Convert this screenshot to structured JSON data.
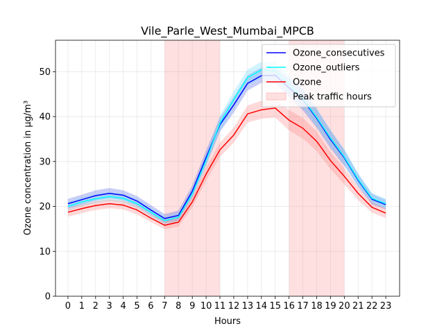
{
  "chart_data": {
    "type": "line",
    "title": "Vile_Parle_West_Mumbai_MPCB",
    "xlabel": "Hours",
    "ylabel": "Ozone concentration in µg/m³",
    "xlim": [
      -0.9,
      24.0
    ],
    "ylim": [
      0,
      57
    ],
    "x": [
      0,
      1,
      2,
      3,
      4,
      5,
      6,
      7,
      8,
      9,
      10,
      11,
      12,
      13,
      14,
      15,
      16,
      17,
      18,
      19,
      20,
      21,
      22,
      23
    ],
    "x_ticks": [
      "0",
      "1",
      "2",
      "3",
      "4",
      "5",
      "6",
      "7",
      "8",
      "9",
      "10",
      "11",
      "12",
      "13",
      "14",
      "15",
      "16",
      "17",
      "18",
      "19",
      "20",
      "21",
      "22",
      "23"
    ],
    "y_ticks": [
      "0",
      "10",
      "20",
      "30",
      "40",
      "50"
    ],
    "grid": true,
    "legend_position": "top-right",
    "shaded_regions": [
      {
        "name": "Peak traffic hours",
        "x_start": 7,
        "x_end": 11,
        "color": "#ff9999"
      },
      {
        "name": "Peak traffic hours",
        "x_start": 16,
        "x_end": 20,
        "color": "#ff9999"
      }
    ],
    "series": [
      {
        "name": "Ozone_consecutives",
        "color": "#0000ff",
        "band_color": "#4a5ee6",
        "values": [
          20.6,
          21.5,
          22.4,
          22.9,
          22.5,
          21.2,
          19.2,
          17.3,
          18.0,
          23.4,
          30.9,
          38.2,
          42.6,
          47.4,
          49.1,
          49.2,
          46.4,
          43.8,
          39.6,
          34.9,
          30.8,
          25.8,
          21.6,
          20.4
        ],
        "lower": [
          19.5,
          20.4,
          21.3,
          21.8,
          21.4,
          20.1,
          18.1,
          16.3,
          16.9,
          22.1,
          29.3,
          36.6,
          40.9,
          45.8,
          47.5,
          47.4,
          44.3,
          41.4,
          37.5,
          32.9,
          29.0,
          24.4,
          20.4,
          19.3
        ],
        "upper": [
          21.7,
          22.6,
          23.6,
          24.1,
          23.6,
          22.3,
          20.3,
          18.3,
          19.1,
          24.7,
          32.5,
          39.8,
          44.4,
          49.2,
          50.9,
          51.0,
          48.5,
          46.2,
          41.7,
          36.9,
          32.6,
          27.2,
          22.8,
          21.5
        ]
      },
      {
        "name": "Ozone_outliers",
        "color": "#00ffff",
        "band_color": "#66d9ff",
        "values": [
          20.0,
          21.0,
          21.7,
          22.2,
          21.8,
          20.6,
          18.7,
          16.8,
          17.6,
          22.8,
          30.3,
          38.5,
          43.8,
          48.7,
          50.4,
          50.2,
          47.1,
          44.0,
          39.8,
          35.2,
          31.0,
          26.0,
          21.8,
          20.6
        ],
        "lower": [
          19.0,
          20.0,
          20.7,
          21.2,
          20.8,
          19.6,
          17.7,
          15.8,
          16.6,
          21.6,
          28.8,
          36.8,
          42.0,
          46.9,
          48.6,
          48.3,
          45.1,
          41.9,
          37.8,
          33.3,
          29.3,
          24.6,
          20.6,
          19.5
        ],
        "upper": [
          21.0,
          22.0,
          22.7,
          23.2,
          22.8,
          21.6,
          19.7,
          17.8,
          18.6,
          24.0,
          31.8,
          40.2,
          45.6,
          50.5,
          52.2,
          52.1,
          49.1,
          46.1,
          41.8,
          37.1,
          32.7,
          27.4,
          23.0,
          21.7
        ]
      },
      {
        "name": "Ozone",
        "color": "#ff0000",
        "band_color": "#ff8080",
        "values": [
          18.7,
          19.5,
          20.2,
          20.6,
          20.3,
          19.2,
          17.4,
          15.8,
          16.5,
          21.0,
          27.2,
          32.6,
          35.9,
          40.6,
          41.5,
          41.9,
          39.2,
          37.4,
          34.5,
          30.2,
          26.7,
          22.9,
          19.8,
          18.5
        ],
        "lower": [
          17.7,
          18.5,
          19.2,
          19.6,
          19.3,
          18.2,
          16.5,
          14.9,
          15.5,
          19.8,
          25.7,
          31.0,
          34.2,
          38.7,
          39.5,
          39.8,
          36.9,
          35.1,
          32.3,
          28.3,
          24.9,
          21.4,
          18.6,
          17.4
        ],
        "upper": [
          19.7,
          20.5,
          21.2,
          21.6,
          21.3,
          20.2,
          18.3,
          16.7,
          17.5,
          22.2,
          28.7,
          34.2,
          37.6,
          42.5,
          43.5,
          44.0,
          41.5,
          39.7,
          36.7,
          32.1,
          28.5,
          24.4,
          21.0,
          19.6
        ]
      }
    ],
    "legend": [
      {
        "label": "Ozone_consecutives",
        "kind": "line",
        "color": "#0000ff"
      },
      {
        "label": "Ozone_outliers",
        "kind": "line",
        "color": "#00ffff"
      },
      {
        "label": "Ozone",
        "kind": "line",
        "color": "#ff0000"
      },
      {
        "label": "Peak traffic hours",
        "kind": "patch",
        "color": "#ff9999"
      }
    ]
  }
}
